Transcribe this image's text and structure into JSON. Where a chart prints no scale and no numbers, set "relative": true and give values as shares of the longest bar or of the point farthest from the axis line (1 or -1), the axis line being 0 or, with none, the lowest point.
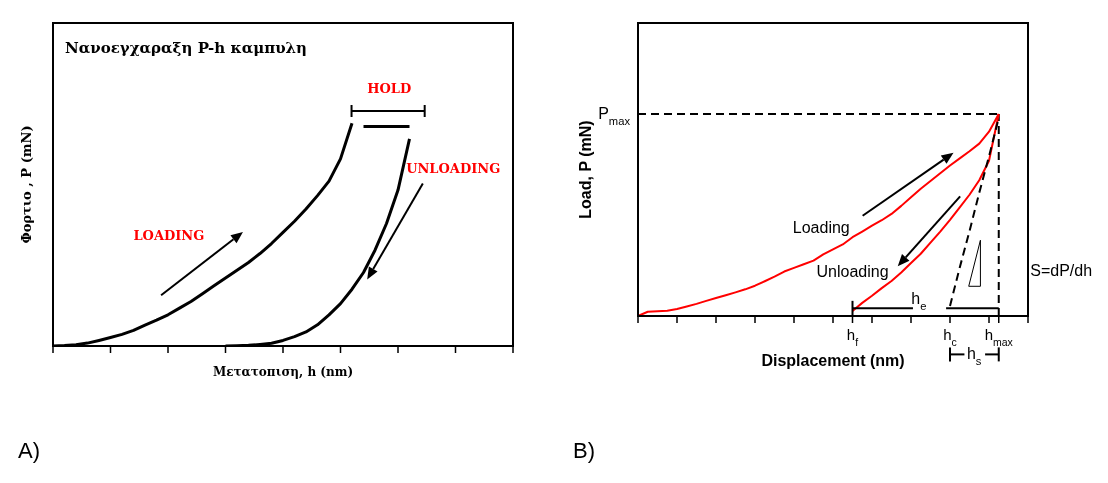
{
  "chart_data": [
    {
      "type": "line",
      "title": "Νανοεγχαραξη P-h καμπυλη",
      "xlabel": "Μετατοπιση, h (nm)",
      "ylabel": "Φορτιο  , P (mN)",
      "relative": true,
      "marker": "none",
      "tick_labels": false,
      "categories": [
        null,
        null,
        null,
        null,
        null,
        null,
        null,
        null,
        null,
        null,
        null,
        null,
        null,
        null,
        null,
        null,
        null,
        null,
        null,
        null,
        null,
        null,
        null,
        null,
        null,
        null,
        null,
        null,
        null,
        null,
        null,
        null,
        null,
        null,
        null,
        null,
        null,
        null,
        null,
        null,
        null
      ],
      "series": [
        {
          "color": "#000000",
          "values": [
            0,
            0.002,
            0.006,
            0.013,
            0.025,
            0.038,
            0.052,
            0.07,
            0.094,
            0.116,
            0.14,
            0.17,
            0.2,
            0.235,
            0.27,
            0.305,
            0.34,
            0.375,
            0.415,
            0.46,
            0.51,
            0.56,
            0.615,
            0.675,
            0.74,
            0.84,
            1.0,
            null,
            null,
            null,
            null,
            null,
            null,
            null,
            null,
            null,
            null,
            null,
            null,
            null,
            null
          ]
        },
        {
          "color": "#000000",
          "values": [
            null,
            null,
            null,
            null,
            null,
            null,
            null,
            null,
            null,
            null,
            null,
            null,
            null,
            null,
            null,
            null,
            null,
            null,
            null,
            null,
            null,
            null,
            null,
            null,
            null,
            null,
            null,
            0.985,
            0.985,
            0.985,
            0.985,
            0.985,
            null,
            null,
            null,
            null,
            null,
            null,
            null,
            null,
            null
          ]
        },
        {
          "color": "#000000",
          "values": [
            null,
            null,
            null,
            null,
            null,
            null,
            null,
            null,
            null,
            null,
            null,
            null,
            null,
            null,
            null,
            0,
            0.001,
            0.003,
            0.007,
            0.012,
            0.025,
            0.042,
            0.063,
            0.095,
            0.14,
            0.19,
            0.255,
            0.33,
            0.43,
            0.55,
            0.7,
            0.93,
            null,
            null,
            null,
            null,
            null,
            null,
            null,
            null,
            null
          ]
        }
      ],
      "annotations": [
        "LOADING",
        "HOLD",
        "UNLOADING",
        "A)"
      ]
    },
    {
      "type": "line",
      "xlabel": "Displacement (nm)",
      "ylabel": "Load, P (mN)",
      "relative": true,
      "marker": "none",
      "tick_labels": "x",
      "categories": [
        null,
        null,
        null,
        null,
        null,
        null,
        null,
        null,
        null,
        null,
        null,
        null,
        null,
        null,
        null,
        null,
        null,
        null,
        null,
        null,
        null,
        null,
        "h$_{f}$",
        null,
        null,
        null,
        null,
        null,
        null,
        null,
        null,
        null,
        "h$_{c}$",
        null,
        null,
        null,
        null,
        "h$_{max}$",
        null,
        null,
        null
      ],
      "series": [
        {
          "color": "#ff0000",
          "values": [
            0,
            0.021,
            0.024,
            0.026,
            0.035,
            0.047,
            0.06,
            0.075,
            0.089,
            0.103,
            0.117,
            0.132,
            0.15,
            0.172,
            0.195,
            0.22,
            0.238,
            0.256,
            0.274,
            0.305,
            0.33,
            0.354,
            0.39,
            0.418,
            0.447,
            0.474,
            0.505,
            0.545,
            0.588,
            0.63,
            0.668,
            0.706,
            0.745,
            0.78,
            0.815,
            0.853,
            0.912,
            1.0,
            null,
            null,
            null
          ]
        },
        {
          "color": "#ff0000",
          "values": [
            null,
            null,
            null,
            null,
            null,
            null,
            null,
            null,
            null,
            null,
            null,
            null,
            null,
            null,
            null,
            null,
            null,
            null,
            null,
            null,
            null,
            null,
            0.025,
            0.065,
            0.1,
            0.138,
            0.173,
            0.215,
            0.262,
            0.308,
            0.363,
            0.418,
            0.476,
            0.537,
            0.6,
            0.672,
            0.768,
            1.0,
            null,
            null,
            null
          ]
        },
        {
          "color": "#000000",
          "line_style": "dashed",
          "values": [
            null,
            null,
            null,
            null,
            null,
            null,
            null,
            null,
            null,
            null,
            null,
            null,
            null,
            null,
            null,
            null,
            null,
            null,
            null,
            null,
            null,
            null,
            null,
            null,
            null,
            null,
            null,
            null,
            null,
            null,
            null,
            null,
            0.05,
            0.24,
            0.42,
            0.61,
            0.79,
            0.98,
            null,
            null,
            null
          ]
        },
        {
          "name": "P$_{max}$",
          "color": "#000000",
          "line_style": "dashed",
          "values": [
            1,
            1,
            1,
            1,
            1,
            1,
            1,
            1,
            1,
            1,
            1,
            1,
            1,
            1,
            1,
            1,
            1,
            1,
            1,
            1,
            1,
            1,
            1,
            1,
            1,
            1,
            1,
            1,
            1,
            1,
            1,
            1,
            1,
            1,
            1,
            1,
            1,
            1,
            null,
            null,
            null
          ]
        }
      ],
      "ref_lines": [
        {
          "axis": "x",
          "value": "h$_{max}$",
          "line_style": "dashed",
          "color": "#000000"
        }
      ],
      "annotations": [
        "Loading",
        "Unloading",
        "S=dP/dh",
        "h$_{e}$",
        "h$_{s}$",
        "B)"
      ]
    }
  ]
}
